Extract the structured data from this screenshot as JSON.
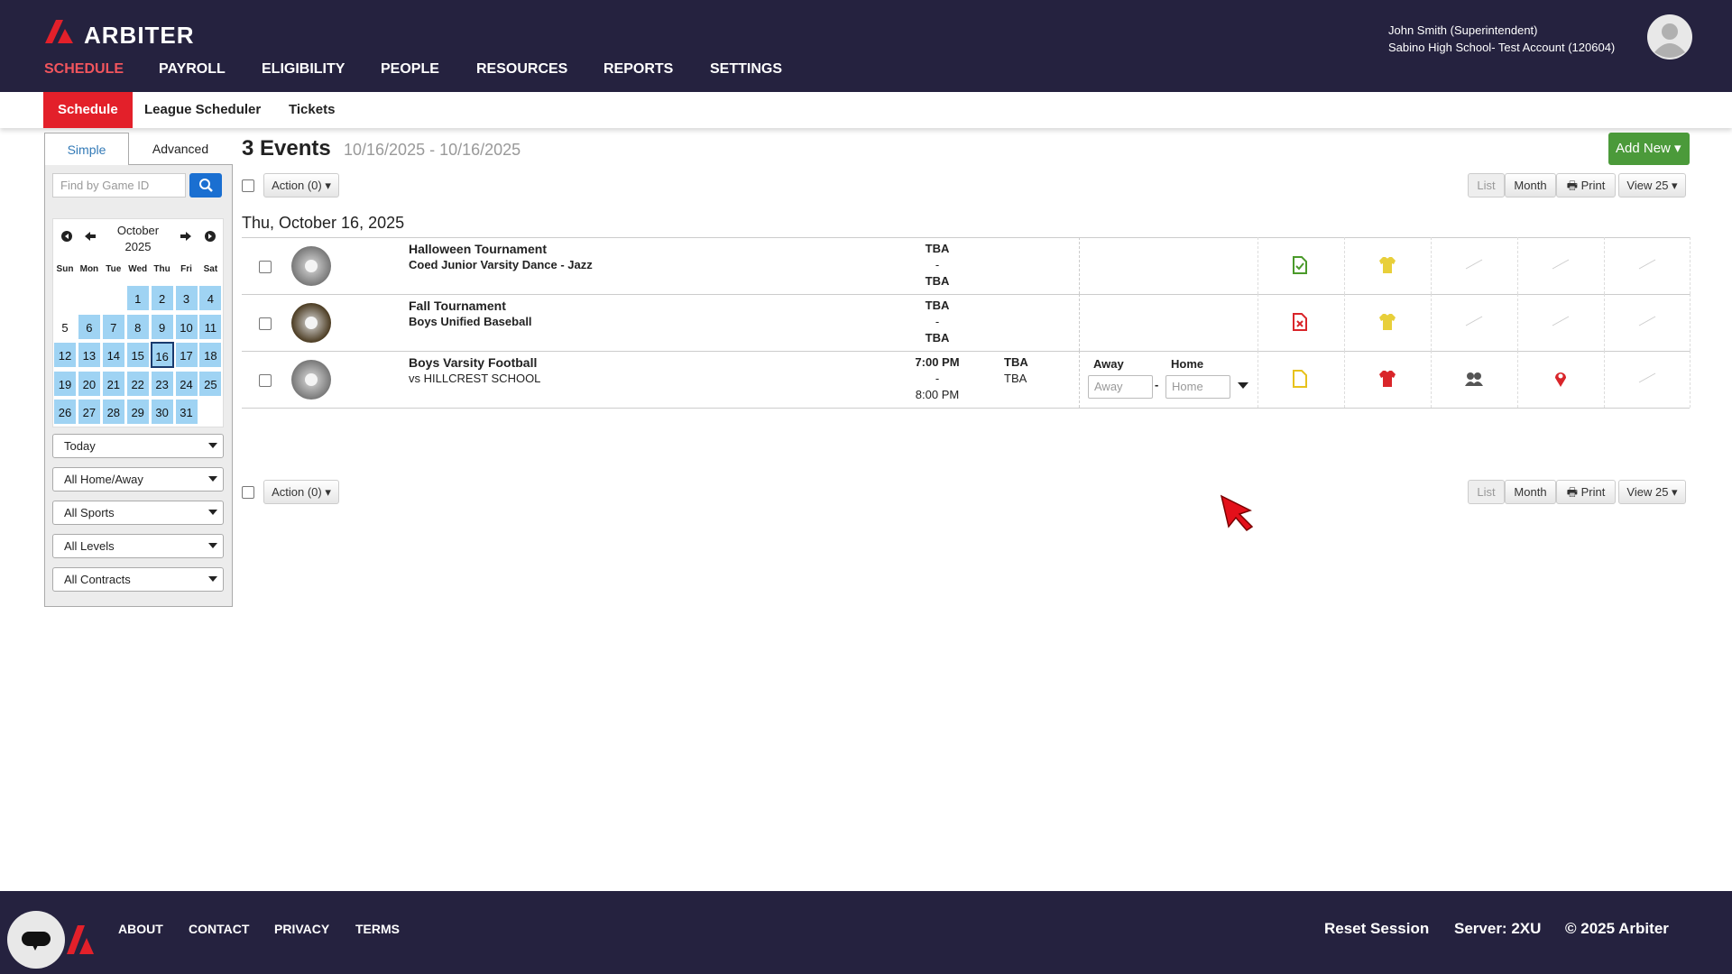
{
  "header": {
    "brand": "ARBITER",
    "user_name": "John Smith (Superintendent)",
    "account": "Sabino High School- Test Account (120604)",
    "nav": [
      "SCHEDULE",
      "PAYROLL",
      "ELIGIBILITY",
      "PEOPLE",
      "RESOURCES",
      "REPORTS",
      "SETTINGS"
    ]
  },
  "subnav": [
    "Schedule",
    "League Scheduler",
    "Tickets"
  ],
  "sidebar": {
    "tabs": [
      "Simple",
      "Advanced"
    ],
    "search_placeholder": "Find by Game ID",
    "calendar": {
      "month": "October",
      "year": "2025",
      "weekdays": [
        "Sun",
        "Mon",
        "Tue",
        "Wed",
        "Thu",
        "Fri",
        "Sat"
      ],
      "weeks": [
        [
          null,
          null,
          null,
          1,
          2,
          3,
          4
        ],
        [
          5,
          6,
          7,
          8,
          9,
          10,
          11
        ],
        [
          12,
          13,
          14,
          15,
          16,
          17,
          18
        ],
        [
          19,
          20,
          21,
          22,
          23,
          24,
          25
        ],
        [
          26,
          27,
          28,
          29,
          30,
          31,
          null
        ]
      ]
    },
    "filters": [
      "Today",
      "All Home/Away",
      "All Sports",
      "All Levels",
      "All Contracts"
    ]
  },
  "main": {
    "count_title": "3 Events",
    "date_range": "10/16/2025 - 10/16/2025",
    "add_new": "Add New",
    "action": "Action (0)",
    "view_buttons": [
      "List",
      "Month",
      "Print",
      "View 25"
    ],
    "day_heading": "Thu, October 16, 2025",
    "events": [
      {
        "title": "Halloween Tournament",
        "subtitle": "Coed Junior Varsity Dance - Jazz",
        "start": "TBA",
        "dash": "-",
        "end": "TBA"
      },
      {
        "title": "Fall Tournament",
        "subtitle": "Boys Unified Baseball",
        "start": "TBA",
        "dash": "-",
        "end": "TBA"
      },
      {
        "title": "Boys Varsity Football",
        "subtitle": "vs HILLCREST SCHOOL",
        "start": "7:00 PM",
        "dash": "-",
        "end": "8:00 PM",
        "location": [
          "TBA",
          "TBA"
        ],
        "score_labels": [
          "Away",
          "Home"
        ],
        "score_placeholders": [
          "Away",
          "Home"
        ],
        "score_separator": "-"
      }
    ]
  },
  "footer": {
    "links": [
      "ABOUT",
      "CONTACT",
      "PRIVACY",
      "TERMS"
    ],
    "reset": "Reset Session",
    "server": "Server: 2XU",
    "copyright": "© 2025 Arbiter"
  }
}
